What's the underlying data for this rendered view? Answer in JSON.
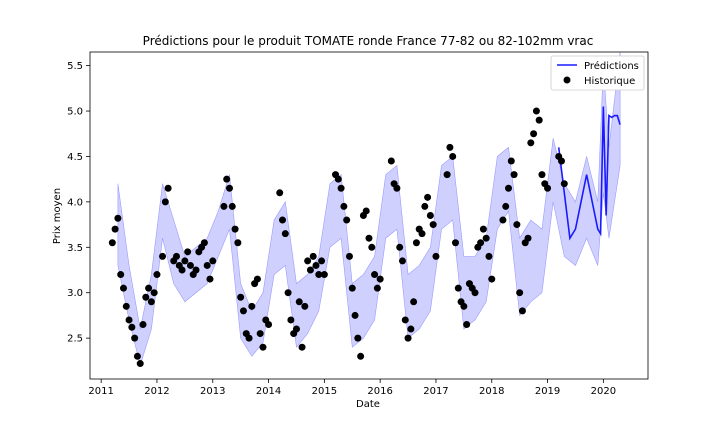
{
  "chart_data": {
    "type": "line",
    "title": "Prédictions pour le produit TOMATE ronde France 77-82 ou 82-102mm vrac",
    "xlabel": "Date",
    "ylabel": "Prix moyen",
    "xlim": [
      2010.8,
      2020.8
    ],
    "ylim": [
      2.05,
      5.65
    ],
    "xticks": [
      2011,
      2012,
      2013,
      2014,
      2015,
      2016,
      2017,
      2018,
      2019,
      2020
    ],
    "yticks": [
      2.5,
      3.0,
      3.5,
      4.0,
      4.5,
      5.0,
      5.5
    ],
    "ytick_labels": [
      "2.5",
      "3.0",
      "3.5",
      "4.0",
      "4.5",
      "5.0",
      "5.5"
    ],
    "legend_position": "top-right",
    "colors": {
      "prediction": "#1a1aff",
      "band": "#c8c8ff",
      "band_edge": "#9a9aff",
      "history": "#000000"
    },
    "series": [
      {
        "name": "Prédictions",
        "kind": "line",
        "x": [
          2019.2,
          2019.3,
          2019.4,
          2019.5,
          2019.6,
          2019.7,
          2019.8,
          2019.9,
          2019.95,
          2020.0,
          2020.05,
          2020.1,
          2020.15,
          2020.2,
          2020.25,
          2020.3
        ],
        "y": [
          4.6,
          4.1,
          3.6,
          3.7,
          4.0,
          4.3,
          4.0,
          3.7,
          3.65,
          5.05,
          3.85,
          4.95,
          4.93,
          4.95,
          4.95,
          4.85
        ]
      },
      {
        "name": "",
        "kind": "band",
        "x": [
          2011.3,
          2011.5,
          2011.7,
          2011.9,
          2012.1,
          2012.3,
          2012.5,
          2012.7,
          2012.9,
          2013.1,
          2013.3,
          2013.5,
          2013.7,
          2013.9,
          2014.1,
          2014.3,
          2014.5,
          2014.7,
          2014.9,
          2015.1,
          2015.3,
          2015.5,
          2015.7,
          2015.9,
          2016.1,
          2016.3,
          2016.5,
          2016.7,
          2016.9,
          2017.1,
          2017.3,
          2017.5,
          2017.7,
          2017.9,
          2018.1,
          2018.3,
          2018.5,
          2018.7,
          2018.9,
          2019.1,
          2019.3,
          2019.5,
          2019.7,
          2019.9,
          2020.0,
          2020.1,
          2020.3
        ],
        "lower": [
          3.3,
          2.7,
          2.2,
          2.6,
          3.6,
          3.1,
          2.9,
          3.0,
          3.1,
          3.4,
          3.7,
          2.5,
          2.3,
          2.45,
          3.2,
          3.3,
          2.4,
          2.55,
          2.8,
          3.5,
          3.6,
          2.4,
          2.5,
          2.7,
          3.6,
          3.7,
          2.5,
          2.6,
          2.8,
          3.7,
          3.8,
          2.6,
          2.7,
          2.9,
          3.7,
          3.9,
          2.75,
          2.9,
          3.0,
          4.0,
          3.4,
          3.3,
          3.6,
          3.3,
          4.1,
          3.6,
          4.4
        ],
        "upper": [
          4.2,
          3.3,
          2.6,
          3.2,
          4.2,
          3.8,
          3.4,
          3.5,
          3.6,
          3.9,
          4.3,
          3.1,
          2.8,
          3.0,
          3.8,
          4.0,
          3.1,
          3.2,
          3.4,
          4.2,
          4.3,
          3.1,
          3.2,
          3.4,
          4.3,
          4.4,
          3.2,
          3.3,
          3.5,
          4.4,
          4.5,
          3.4,
          3.4,
          3.6,
          4.5,
          4.6,
          3.6,
          3.8,
          3.7,
          4.7,
          4.2,
          4.0,
          4.5,
          4.0,
          5.5,
          4.6,
          5.8
        ]
      },
      {
        "name": "Historique",
        "kind": "scatter",
        "x": [
          2011.2,
          2011.25,
          2011.3,
          2011.35,
          2011.4,
          2011.45,
          2011.5,
          2011.55,
          2011.6,
          2011.65,
          2011.7,
          2011.75,
          2011.8,
          2011.85,
          2011.9,
          2011.95,
          2012.0,
          2012.1,
          2012.15,
          2012.2,
          2012.3,
          2012.35,
          2012.4,
          2012.45,
          2012.5,
          2012.55,
          2012.6,
          2012.65,
          2012.7,
          2012.75,
          2012.8,
          2012.85,
          2012.9,
          2012.95,
          2013.0,
          2013.2,
          2013.25,
          2013.3,
          2013.35,
          2013.4,
          2013.45,
          2013.5,
          2013.55,
          2013.6,
          2013.65,
          2013.7,
          2013.75,
          2013.8,
          2013.85,
          2013.9,
          2013.95,
          2014.0,
          2014.2,
          2014.25,
          2014.3,
          2014.35,
          2014.4,
          2014.45,
          2014.5,
          2014.55,
          2014.6,
          2014.65,
          2014.7,
          2014.75,
          2014.8,
          2014.85,
          2014.9,
          2014.95,
          2015.0,
          2015.2,
          2015.25,
          2015.3,
          2015.35,
          2015.4,
          2015.45,
          2015.5,
          2015.55,
          2015.6,
          2015.65,
          2015.7,
          2015.75,
          2015.8,
          2015.85,
          2015.9,
          2015.95,
          2016.0,
          2016.2,
          2016.25,
          2016.3,
          2016.35,
          2016.4,
          2016.45,
          2016.5,
          2016.55,
          2016.6,
          2016.65,
          2016.7,
          2016.75,
          2016.8,
          2016.85,
          2016.9,
          2016.95,
          2017.0,
          2017.2,
          2017.25,
          2017.3,
          2017.35,
          2017.4,
          2017.45,
          2017.5,
          2017.55,
          2017.6,
          2017.65,
          2017.7,
          2017.75,
          2017.8,
          2017.85,
          2017.9,
          2017.95,
          2018.0,
          2018.2,
          2018.25,
          2018.3,
          2018.35,
          2018.4,
          2018.45,
          2018.5,
          2018.55,
          2018.6,
          2018.65,
          2018.7,
          2018.75,
          2018.8,
          2018.85,
          2018.9,
          2018.95,
          2019.0,
          2019.2,
          2019.25,
          2019.3
        ],
        "y": [
          3.55,
          3.7,
          3.82,
          3.2,
          3.05,
          2.85,
          2.7,
          2.62,
          2.5,
          2.3,
          2.22,
          2.65,
          2.95,
          3.05,
          2.9,
          3.0,
          3.2,
          3.4,
          4.0,
          4.15,
          3.35,
          3.4,
          3.3,
          3.25,
          3.35,
          3.45,
          3.3,
          3.2,
          3.25,
          3.45,
          3.5,
          3.55,
          3.3,
          3.15,
          3.35,
          3.95,
          4.25,
          4.15,
          3.95,
          3.7,
          3.55,
          2.95,
          2.8,
          2.55,
          2.5,
          2.85,
          3.1,
          3.15,
          2.55,
          2.4,
          2.7,
          2.65,
          4.1,
          3.8,
          3.65,
          3.0,
          2.7,
          2.55,
          2.6,
          2.9,
          2.4,
          2.85,
          3.35,
          3.25,
          3.4,
          3.3,
          3.2,
          3.35,
          3.2,
          4.3,
          4.25,
          4.15,
          3.95,
          3.8,
          3.4,
          3.05,
          2.75,
          2.5,
          2.3,
          3.85,
          3.9,
          3.6,
          3.5,
          3.2,
          3.05,
          3.15,
          4.45,
          4.2,
          4.15,
          3.5,
          3.35,
          2.7,
          2.5,
          2.6,
          2.9,
          3.55,
          3.7,
          3.65,
          3.95,
          4.05,
          3.85,
          3.75,
          3.4,
          4.3,
          4.6,
          4.5,
          3.55,
          3.05,
          2.9,
          2.85,
          2.65,
          3.1,
          3.05,
          3.0,
          3.5,
          3.55,
          3.7,
          3.6,
          3.4,
          3.15,
          3.8,
          3.95,
          4.15,
          4.45,
          4.3,
          3.75,
          3.0,
          2.8,
          3.55,
          3.6,
          4.65,
          4.75,
          5.0,
          4.9,
          4.3,
          4.2,
          4.15,
          4.5,
          4.45,
          4.2
        ]
      }
    ]
  }
}
